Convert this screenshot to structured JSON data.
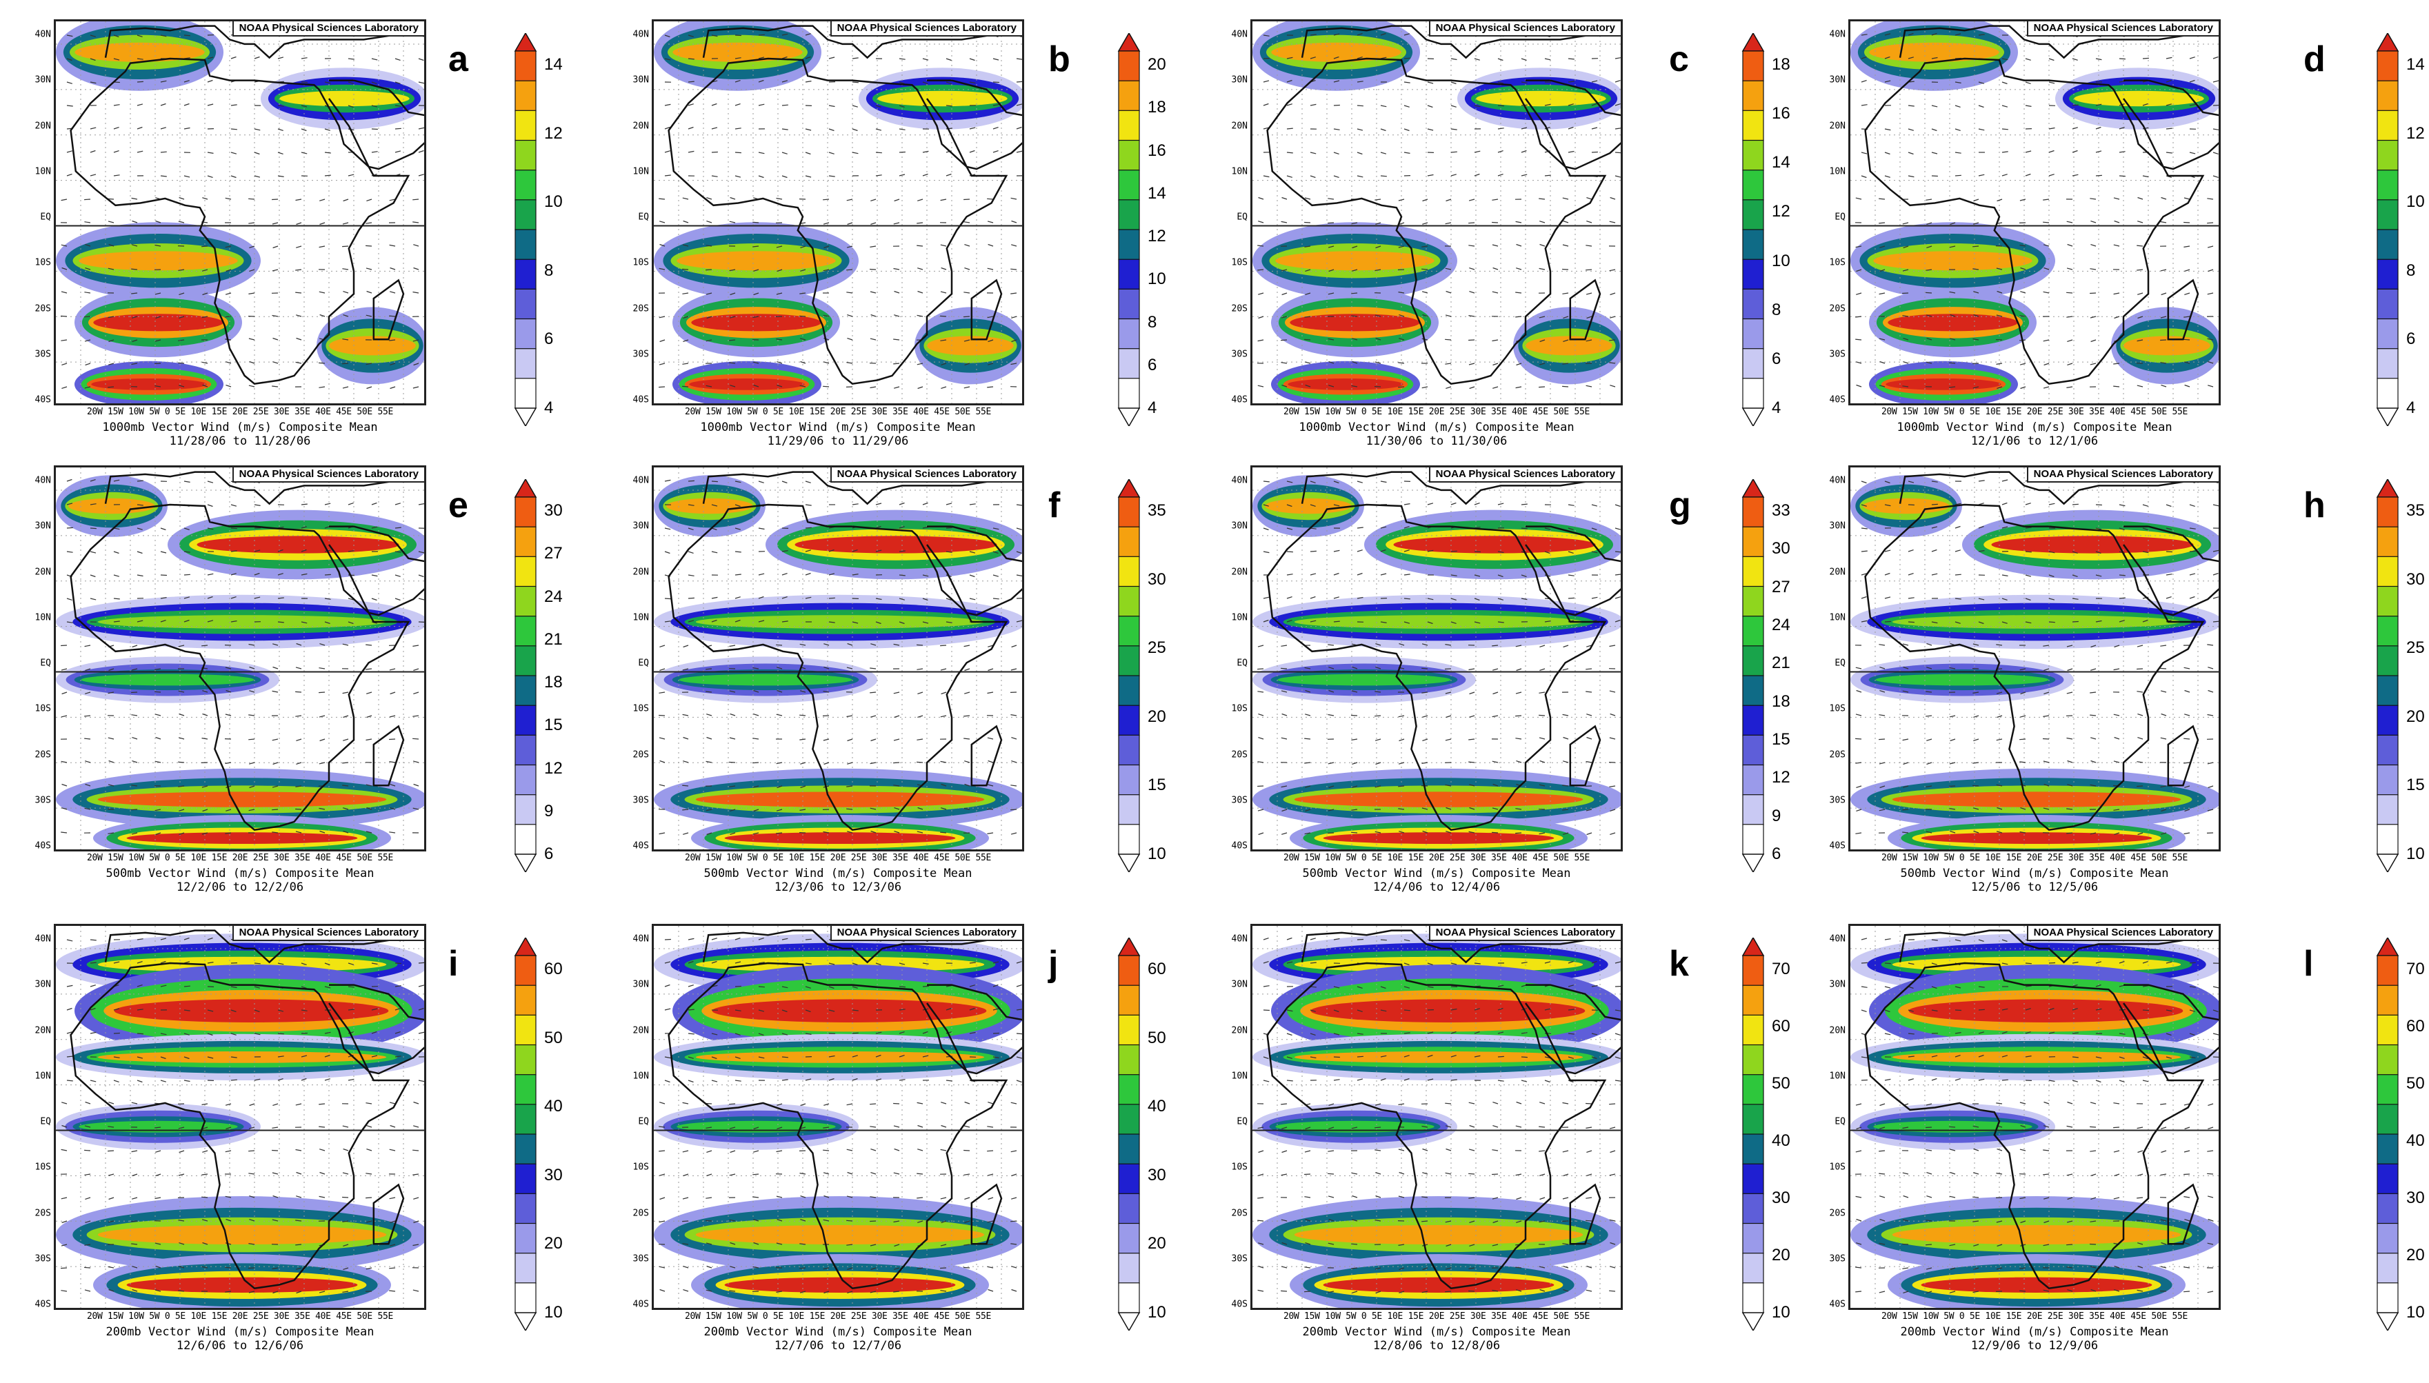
{
  "figure": {
    "source_label": "NOAA Physical Sciences Laboratory",
    "lat_labels": [
      "40N",
      "30N",
      "20N",
      "10N",
      "EQ",
      "10S",
      "20S",
      "30S",
      "40S"
    ],
    "lon_labels": "20W 15W 10W 5W  0  5E 10E 15E 20E 25E 30E 35E 40E 45E 50E 55E",
    "colors": {
      "ramp": [
        "#ffffff",
        "#c9c9f3",
        "#9a9aea",
        "#5e5ed9",
        "#1f1fd1",
        "#0f6b86",
        "#19a44b",
        "#2ec73c",
        "#8fd61e",
        "#f1e411",
        "#f5a10f",
        "#ef5d12",
        "#d8261a"
      ],
      "land_line": "#111111",
      "grid": "#9a9a9a"
    },
    "panels": [
      {
        "letter": "a",
        "caption_line1": "1000mb Vector Wind (m/s) Composite Mean",
        "caption_line2": "11/28/06  to 11/28/06",
        "cbar_ticks": [
          "4",
          "6",
          "8",
          "10",
          "12",
          "14"
        ]
      },
      {
        "letter": "b",
        "caption_line1": "1000mb Vector Wind (m/s) Composite Mean",
        "caption_line2": "11/29/06  to 11/29/06",
        "cbar_ticks": [
          "4",
          "6",
          "8",
          "10",
          "12",
          "14",
          "16",
          "18",
          "20"
        ]
      },
      {
        "letter": "c",
        "caption_line1": "1000mb Vector Wind (m/s) Composite Mean",
        "caption_line2": "11/30/06  to 11/30/06",
        "cbar_ticks": [
          "4",
          "6",
          "8",
          "10",
          "12",
          "14",
          "16",
          "18"
        ]
      },
      {
        "letter": "d",
        "caption_line1": "1000mb Vector Wind (m/s) Composite Mean",
        "caption_line2": "12/1/06  to 12/1/06",
        "cbar_ticks": [
          "4",
          "6",
          "8",
          "10",
          "12",
          "14"
        ]
      },
      {
        "letter": "e",
        "caption_line1": "500mb Vector Wind (m/s) Composite Mean",
        "caption_line2": "12/2/06  to 12/2/06",
        "cbar_ticks": [
          "6",
          "9",
          "12",
          "15",
          "18",
          "21",
          "24",
          "27",
          "30"
        ]
      },
      {
        "letter": "f",
        "caption_line1": "500mb Vector Wind (m/s) Composite Mean",
        "caption_line2": "12/3/06  to 12/3/06",
        "cbar_ticks": [
          "10",
          "15",
          "20",
          "25",
          "30",
          "35"
        ]
      },
      {
        "letter": "g",
        "caption_line1": "500mb Vector Wind (m/s) Composite Mean",
        "caption_line2": "12/4/06  to 12/4/06",
        "cbar_ticks": [
          "6",
          "9",
          "12",
          "15",
          "18",
          "21",
          "24",
          "27",
          "30",
          "33"
        ]
      },
      {
        "letter": "h",
        "caption_line1": "500mb Vector Wind (m/s) Composite Mean",
        "caption_line2": "12/5/06  to 12/5/06",
        "cbar_ticks": [
          "10",
          "15",
          "20",
          "25",
          "30",
          "35"
        ]
      },
      {
        "letter": "i",
        "caption_line1": "200mb Vector Wind (m/s) Composite Mean",
        "caption_line2": "12/6/06  to 12/6/06",
        "cbar_ticks": [
          "10",
          "20",
          "30",
          "40",
          "50",
          "60"
        ]
      },
      {
        "letter": "j",
        "caption_line1": "200mb Vector Wind (m/s) Composite Mean",
        "caption_line2": "12/7/06  to 12/7/06",
        "cbar_ticks": [
          "10",
          "20",
          "30",
          "40",
          "50",
          "60"
        ]
      },
      {
        "letter": "k",
        "caption_line1": "200mb Vector Wind (m/s) Composite Mean",
        "caption_line2": "12/8/06  to 12/8/06",
        "cbar_ticks": [
          "10",
          "20",
          "30",
          "40",
          "50",
          "60",
          "70"
        ]
      },
      {
        "letter": "l",
        "caption_line1": "200mb Vector Wind (m/s) Composite Mean",
        "caption_line2": "12/9/06  to 12/9/06",
        "cbar_ticks": [
          "10",
          "20",
          "30",
          "40",
          "50",
          "60",
          "70"
        ]
      }
    ]
  }
}
